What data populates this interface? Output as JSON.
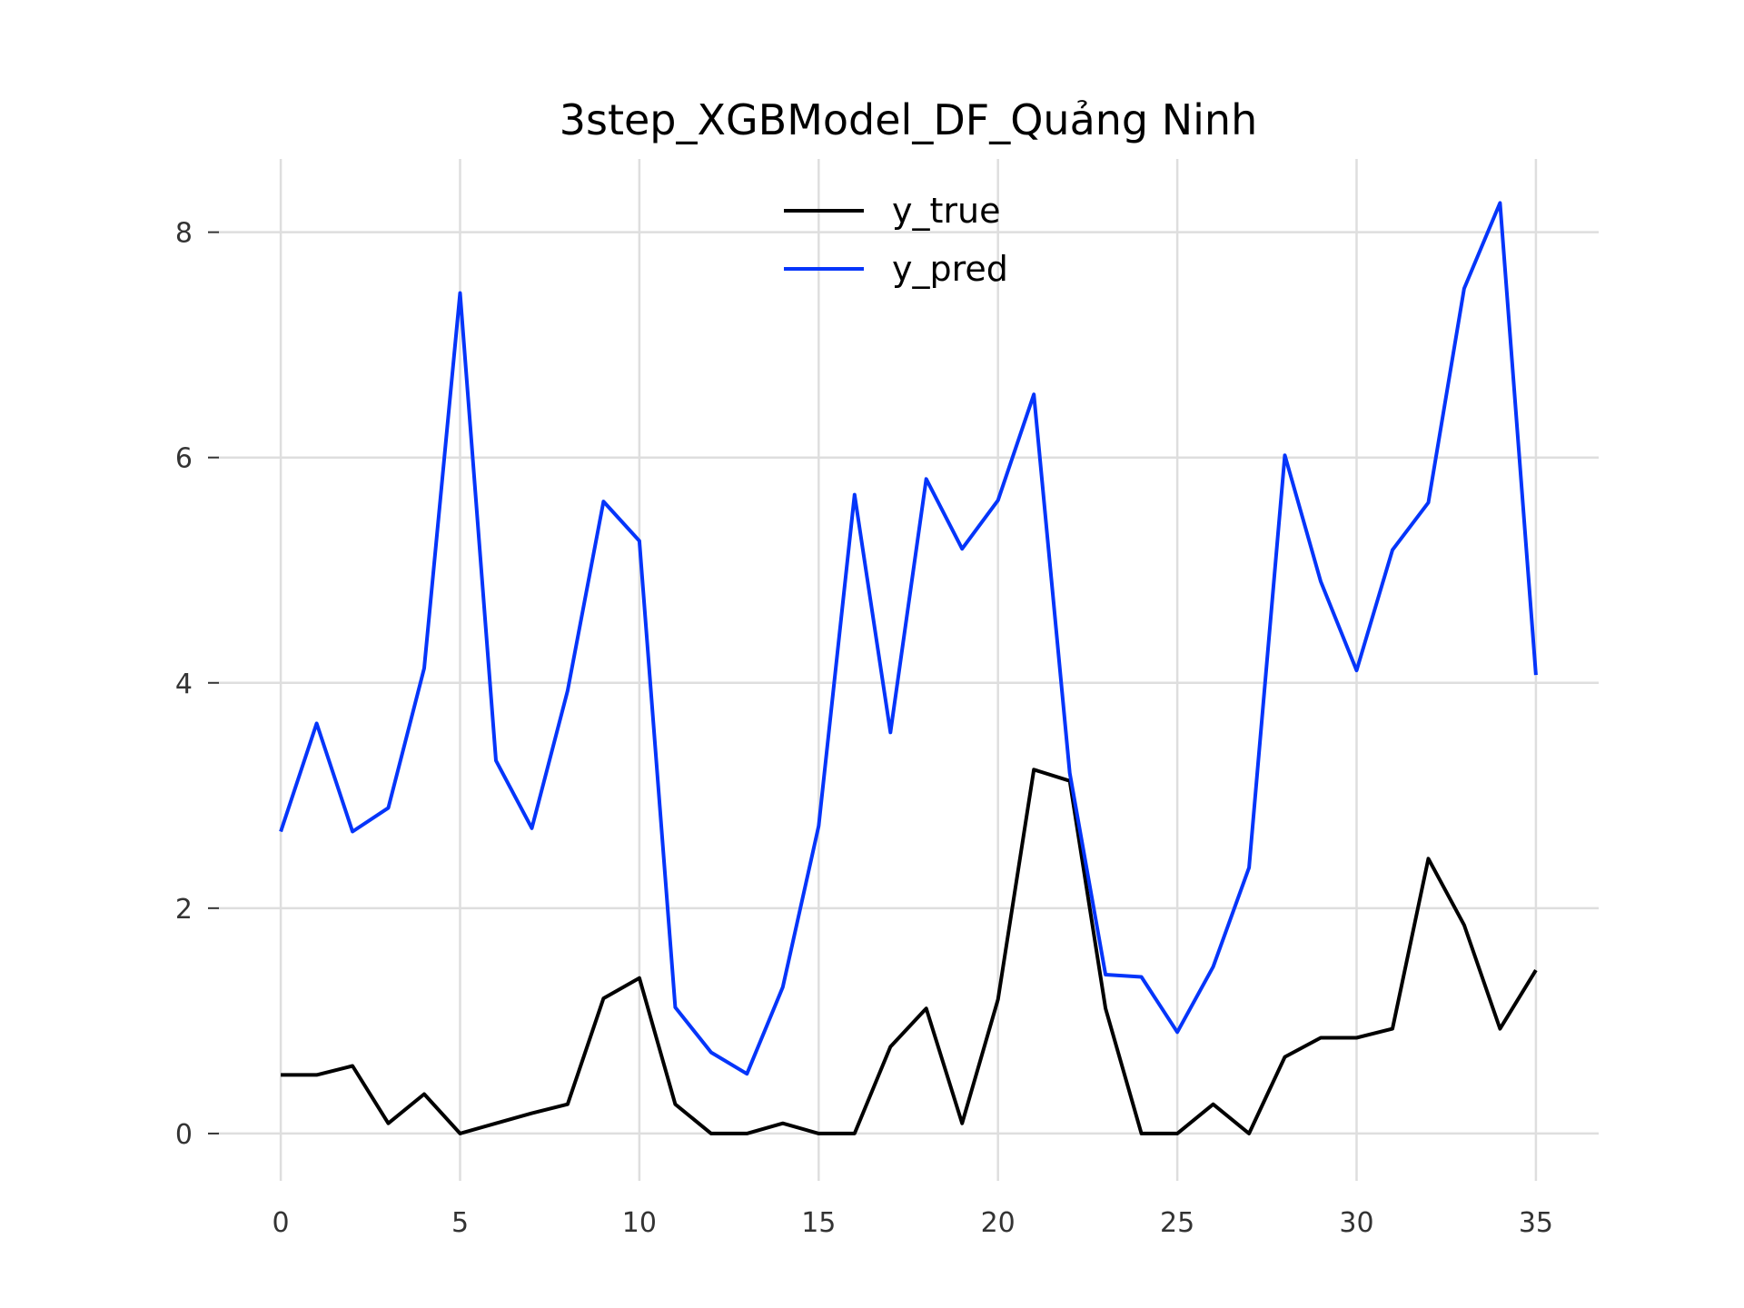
{
  "chart_data": {
    "type": "line",
    "title": "3step_XGBModel_DF_Quảng Ninh",
    "xlabel": "",
    "ylabel": "",
    "xlim": [
      -1.75,
      36.75
    ],
    "ylim": [
      -0.42,
      8.65
    ],
    "x_ticks": [
      0,
      5,
      10,
      15,
      20,
      25,
      30,
      35
    ],
    "y_ticks": [
      0,
      2,
      4,
      6,
      8
    ],
    "grid": true,
    "legend_position": "top-center",
    "x": [
      0,
      1,
      2,
      3,
      4,
      5,
      6,
      7,
      8,
      9,
      10,
      11,
      12,
      13,
      14,
      15,
      16,
      17,
      18,
      19,
      20,
      21,
      22,
      23,
      24,
      25,
      26,
      27,
      28,
      29,
      30,
      31,
      32,
      33,
      34,
      35
    ],
    "series": [
      {
        "name": "y_true",
        "color": "#000000",
        "values": [
          0.52,
          0.52,
          0.6,
          0.09,
          0.35,
          0.0,
          0.09,
          0.18,
          0.26,
          1.2,
          1.38,
          0.26,
          0.0,
          0.0,
          0.09,
          0.0,
          0.0,
          0.77,
          1.11,
          0.09,
          1.19,
          3.23,
          3.13,
          1.11,
          0.0,
          0.0,
          0.26,
          0.0,
          0.68,
          0.85,
          0.85,
          0.93,
          2.44,
          1.85,
          0.93,
          1.45
        ]
      },
      {
        "name": "y_pred",
        "color": "#0535fa",
        "values": [
          2.68,
          3.64,
          2.68,
          2.89,
          4.13,
          7.46,
          3.31,
          2.71,
          3.93,
          5.61,
          5.26,
          1.12,
          0.72,
          0.53,
          1.3,
          2.73,
          5.67,
          3.56,
          5.81,
          5.19,
          5.62,
          6.56,
          3.2,
          1.41,
          1.39,
          0.9,
          1.48,
          2.36,
          6.02,
          4.9,
          4.11,
          5.18,
          5.6,
          7.5,
          8.26,
          4.07
        ]
      }
    ]
  }
}
